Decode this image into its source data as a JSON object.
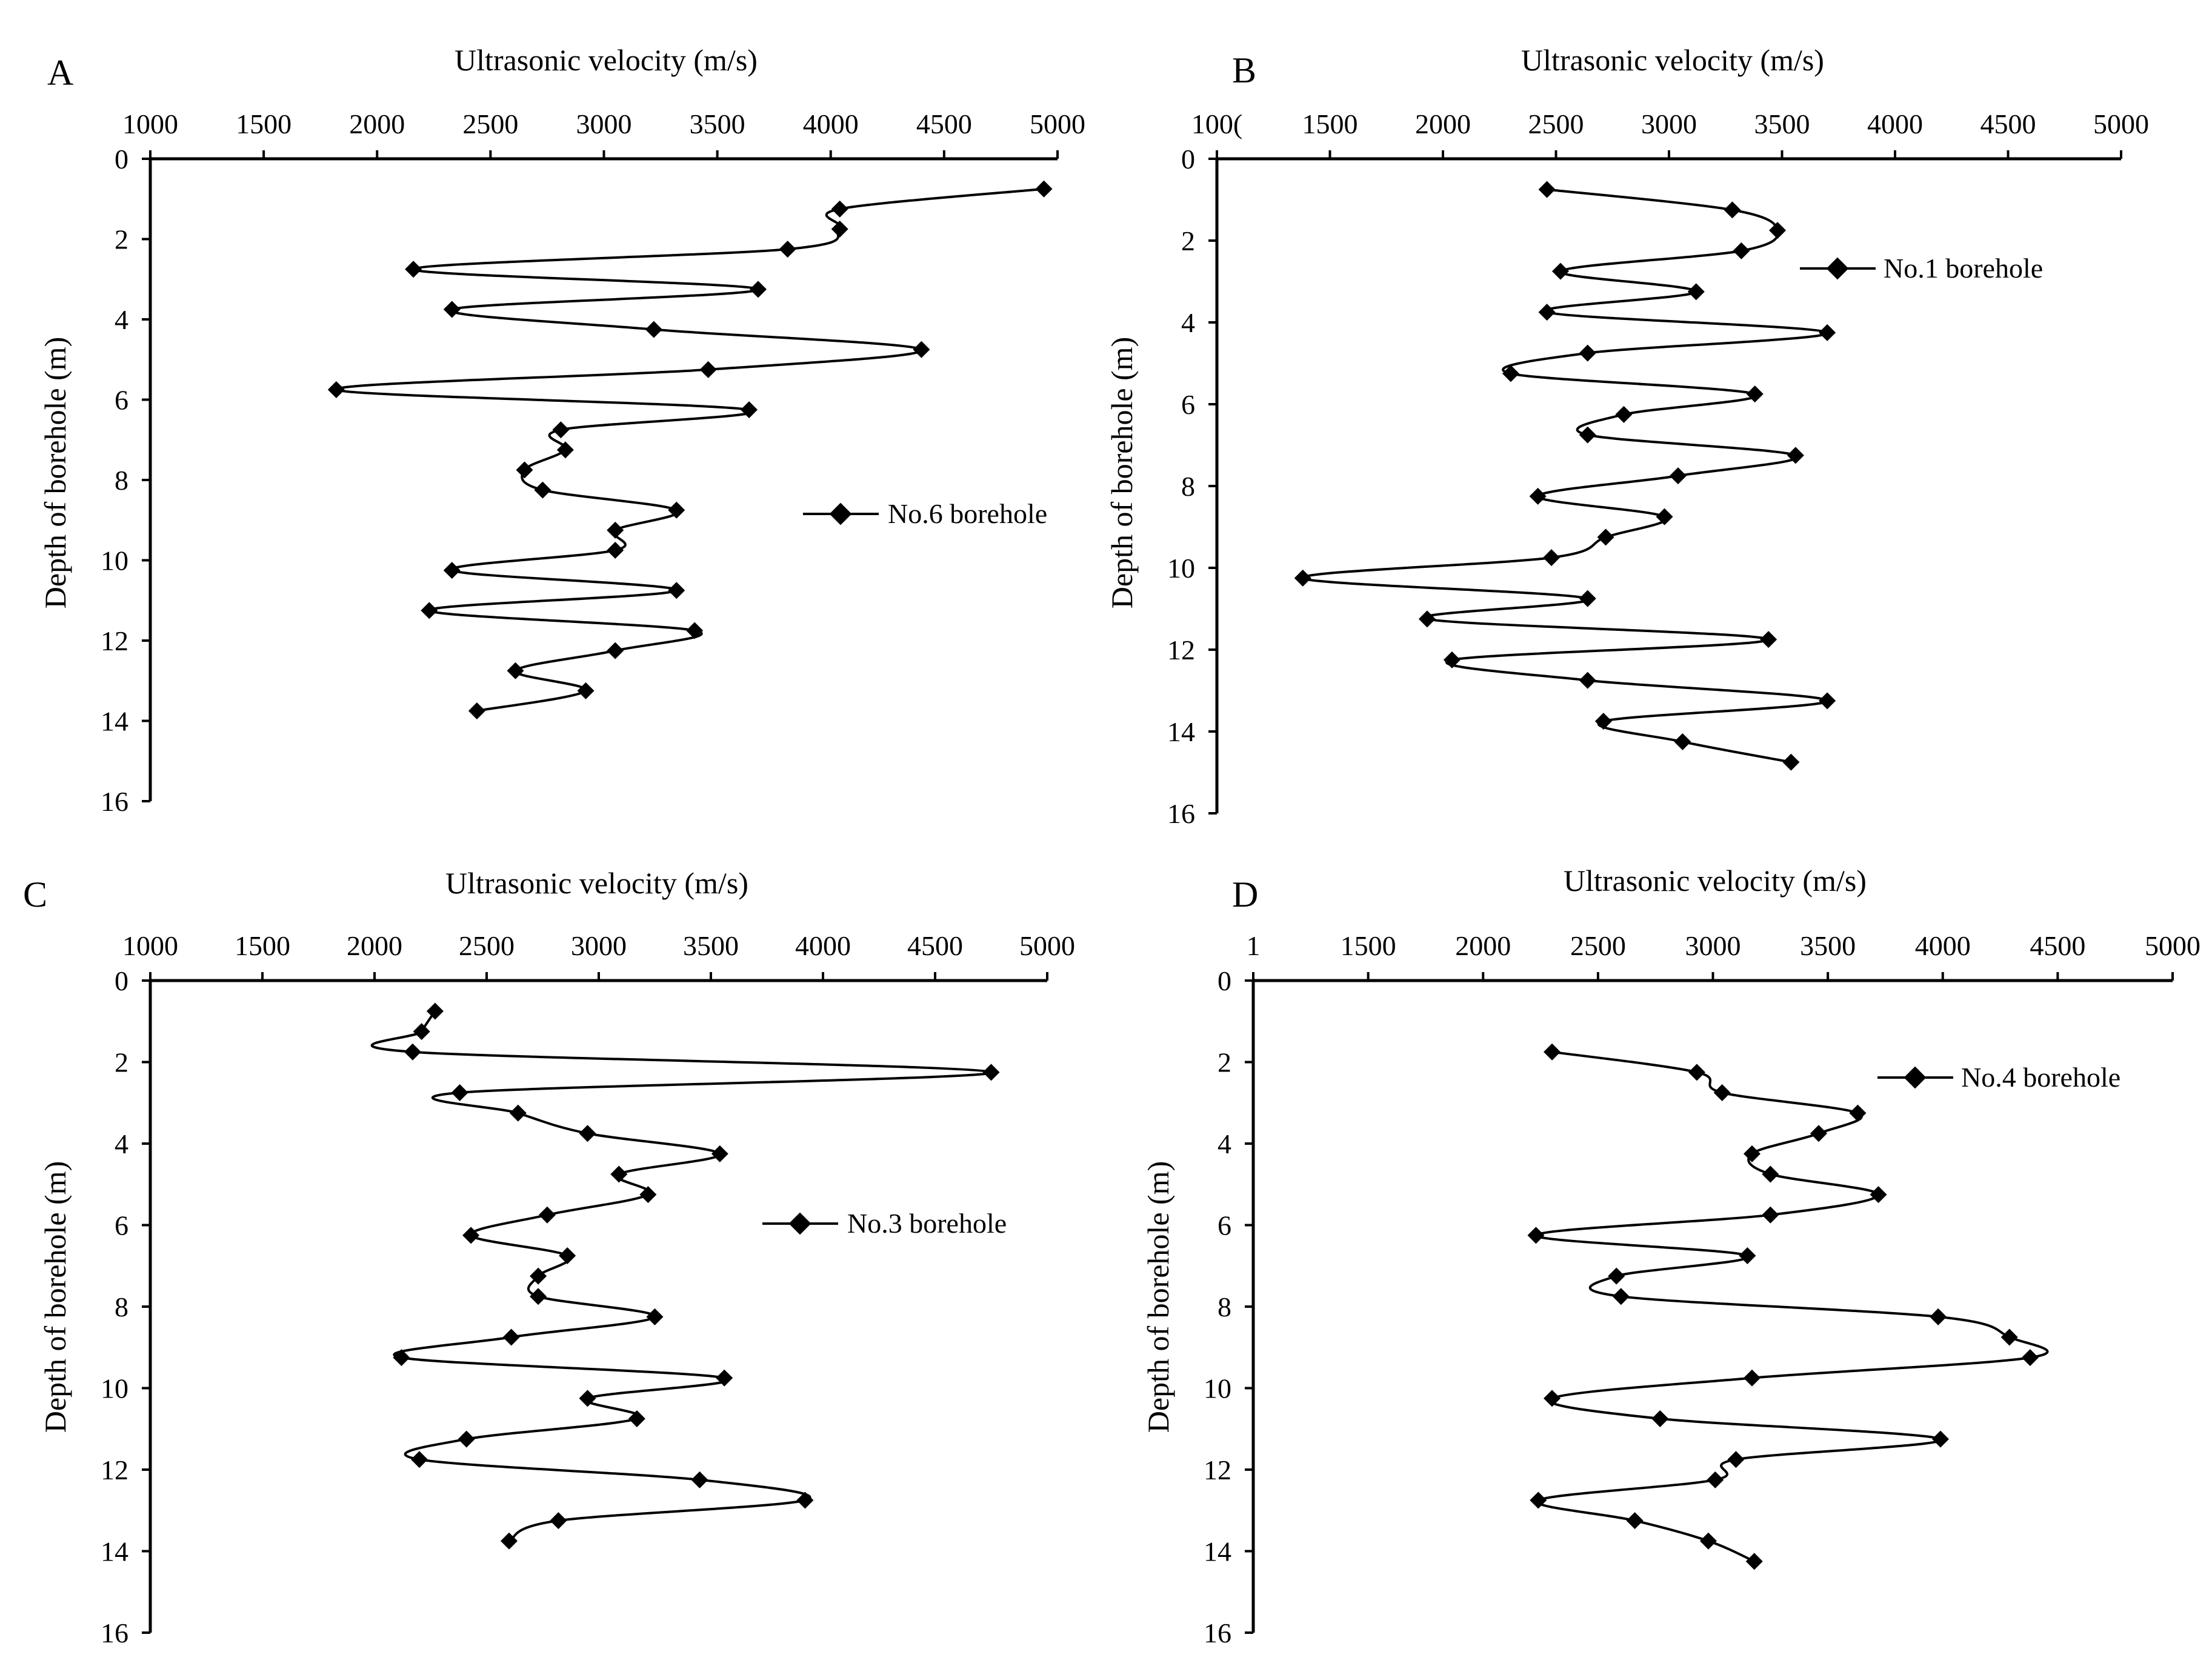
{
  "chart_data": [
    {
      "panel": "A",
      "type": "line",
      "xlabel": "Ultrasonic velocity (m/s)",
      "ylabel": "Depth of borehole (m)",
      "xlim": [
        1000,
        5000
      ],
      "ylim": [
        0,
        16
      ],
      "xticks": [
        "1000",
        "1500",
        "2000",
        "2500",
        "3000",
        "3500",
        "4000",
        "4500",
        "5000"
      ],
      "yticks": [
        "0",
        "2",
        "4",
        "6",
        "8",
        "10",
        "12",
        "14",
        "16"
      ],
      "legend": "No.6 borehole",
      "legend_position": "right",
      "series": [
        {
          "name": "No.6 borehole",
          "points": [
            [
              4940,
              0.75
            ],
            [
              4040,
              1.25
            ],
            [
              4040,
              1.75
            ],
            [
              3810,
              2.25
            ],
            [
              2160,
              2.75
            ],
            [
              3680,
              3.25
            ],
            [
              2330,
              3.75
            ],
            [
              3220,
              4.25
            ],
            [
              4400,
              4.75
            ],
            [
              3460,
              5.25
            ],
            [
              1820,
              5.75
            ],
            [
              3640,
              6.25
            ],
            [
              2810,
              6.75
            ],
            [
              2830,
              7.25
            ],
            [
              2650,
              7.75
            ],
            [
              2730,
              8.25
            ],
            [
              3320,
              8.75
            ],
            [
              3050,
              9.25
            ],
            [
              3050,
              9.75
            ],
            [
              2330,
              10.25
            ],
            [
              3320,
              10.75
            ],
            [
              2230,
              11.25
            ],
            [
              3400,
              11.75
            ],
            [
              3050,
              12.25
            ],
            [
              2610,
              12.75
            ],
            [
              2920,
              13.25
            ],
            [
              2440,
              13.75
            ]
          ]
        }
      ]
    },
    {
      "panel": "B",
      "type": "line",
      "xlabel": "Ultrasonic velocity (m/s)",
      "ylabel": "Depth of borehole (m)",
      "xlim": [
        1000,
        5000
      ],
      "ylim": [
        0,
        16
      ],
      "xticks": [
        "100(",
        "1500",
        "2000",
        "2500",
        "3000",
        "3500",
        "4000",
        "4500",
        "5000"
      ],
      "yticks": [
        "0",
        "2",
        "4",
        "6",
        "8",
        "10",
        "12",
        "14",
        "16"
      ],
      "legend": "No.1 borehole",
      "legend_position": "top-right",
      "series": [
        {
          "name": "No.1 borehole",
          "points": [
            [
              2460,
              0.75
            ],
            [
              3280,
              1.25
            ],
            [
              3480,
              1.75
            ],
            [
              3320,
              2.25
            ],
            [
              2520,
              2.75
            ],
            [
              3120,
              3.25
            ],
            [
              2460,
              3.75
            ],
            [
              3700,
              4.25
            ],
            [
              2640,
              4.75
            ],
            [
              2300,
              5.25
            ],
            [
              3380,
              5.75
            ],
            [
              2800,
              6.25
            ],
            [
              2640,
              6.75
            ],
            [
              3560,
              7.25
            ],
            [
              3040,
              7.75
            ],
            [
              2420,
              8.25
            ],
            [
              2980,
              8.75
            ],
            [
              2720,
              9.25
            ],
            [
              2480,
              9.75
            ],
            [
              1380,
              10.25
            ],
            [
              2640,
              10.75
            ],
            [
              1930,
              11.25
            ],
            [
              3440,
              11.75
            ],
            [
              2040,
              12.25
            ],
            [
              2640,
              12.75
            ],
            [
              3700,
              13.25
            ],
            [
              2710,
              13.75
            ],
            [
              3060,
              14.25
            ],
            [
              3540,
              14.75
            ]
          ]
        }
      ]
    },
    {
      "panel": "C",
      "type": "line",
      "xlabel": "Ultrasonic velocity (m/s)",
      "ylabel": "Depth of borehole (m)",
      "xlim": [
        1000,
        5000
      ],
      "ylim": [
        0,
        16
      ],
      "xticks": [
        "1000",
        "1500",
        "2000",
        "2500",
        "3000",
        "3500",
        "4000",
        "4500",
        "5000"
      ],
      "yticks": [
        "0",
        "2",
        "4",
        "6",
        "8",
        "10",
        "12",
        "14",
        "16"
      ],
      "legend": "No.3 borehole",
      "legend_position": "right",
      "series": [
        {
          "name": "No.3 borehole",
          "points": [
            [
              2270,
              0.75
            ],
            [
              2210,
              1.25
            ],
            [
              2170,
              1.75
            ],
            [
              4750,
              2.25
            ],
            [
              2380,
              2.75
            ],
            [
              2640,
              3.25
            ],
            [
              2950,
              3.75
            ],
            [
              3540,
              4.25
            ],
            [
              3090,
              4.75
            ],
            [
              3220,
              5.25
            ],
            [
              2770,
              5.75
            ],
            [
              2430,
              6.25
            ],
            [
              2860,
              6.75
            ],
            [
              2730,
              7.25
            ],
            [
              2730,
              7.75
            ],
            [
              3250,
              8.25
            ],
            [
              2610,
              8.75
            ],
            [
              2120,
              9.25
            ],
            [
              3560,
              9.75
            ],
            [
              2950,
              10.25
            ],
            [
              3170,
              10.75
            ],
            [
              2410,
              11.25
            ],
            [
              2200,
              11.75
            ],
            [
              3450,
              12.25
            ],
            [
              3920,
              12.75
            ],
            [
              2820,
              13.25
            ],
            [
              2600,
              13.75
            ]
          ]
        }
      ]
    },
    {
      "panel": "D",
      "type": "line",
      "xlabel": "Ultrasonic velocity (m/s)",
      "ylabel": "Depth of borehole (m)",
      "xlim": [
        1000,
        5000
      ],
      "ylim": [
        0,
        16
      ],
      "xticks": [
        "1",
        "1500",
        "2000",
        "2500",
        "3000",
        "3500",
        "4000",
        "4500",
        "5000"
      ],
      "yticks": [
        "0",
        "2",
        "4",
        "6",
        "8",
        "10",
        "12",
        "14",
        "16"
      ],
      "legend": "No.4 borehole",
      "legend_position": "top-right",
      "series": [
        {
          "name": "No.4 borehole",
          "points": [
            [
              2300,
              1.75
            ],
            [
              2930,
              2.25
            ],
            [
              3040,
              2.75
            ],
            [
              3630,
              3.25
            ],
            [
              3460,
              3.75
            ],
            [
              3170,
              4.25
            ],
            [
              3250,
              4.75
            ],
            [
              3720,
              5.25
            ],
            [
              3250,
              5.75
            ],
            [
              2230,
              6.25
            ],
            [
              3150,
              6.75
            ],
            [
              2580,
              7.25
            ],
            [
              2600,
              7.75
            ],
            [
              3980,
              8.25
            ],
            [
              4290,
              8.75
            ],
            [
              4380,
              9.25
            ],
            [
              3170,
              9.75
            ],
            [
              2300,
              10.25
            ],
            [
              2770,
              10.75
            ],
            [
              3990,
              11.25
            ],
            [
              3100,
              11.75
            ],
            [
              3010,
              12.25
            ],
            [
              2240,
              12.75
            ],
            [
              2660,
              13.25
            ],
            [
              2980,
              13.75
            ],
            [
              3180,
              14.25
            ]
          ]
        }
      ]
    }
  ]
}
